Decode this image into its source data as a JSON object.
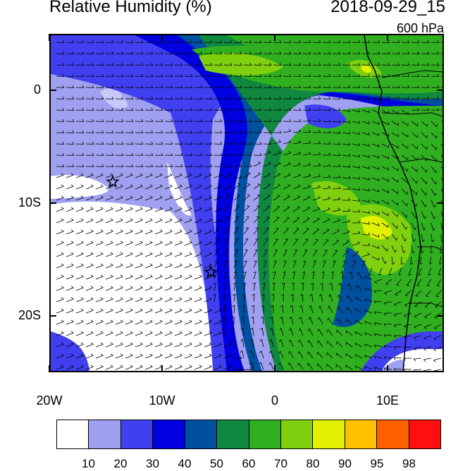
{
  "header": {
    "title": "Relative Humidity (%)",
    "datetime": "2018-09-29_15",
    "level": "600 hPa"
  },
  "map": {
    "lat_labels": [
      {
        "text": "0",
        "lat": 0
      },
      {
        "text": "10S",
        "lat": -10
      },
      {
        "text": "20S",
        "lat": -20
      }
    ],
    "lon_labels": [
      {
        "text": "20W",
        "lon": -20
      },
      {
        "text": "10W",
        "lon": -10
      },
      {
        "text": "0",
        "lon": 0
      },
      {
        "text": "10E",
        "lon": 10
      }
    ],
    "lon_range": [
      -20,
      15
    ],
    "lat_range": [
      -25,
      5
    ],
    "markers": [
      {
        "name": "star-marker",
        "lon": -14.5,
        "lat": -8
      },
      {
        "name": "star-marker",
        "lon": -5.8,
        "lat": -16
      }
    ]
  },
  "colorbar": {
    "colors": [
      "#ffffff",
      "#a0a0f0",
      "#4040f0",
      "#0000e0",
      "#0050a0",
      "#108840",
      "#30b020",
      "#80d010",
      "#e0f000",
      "#ffc000",
      "#ff6000",
      "#ff1010"
    ],
    "labels": [
      "10",
      "20",
      "30",
      "40",
      "50",
      "60",
      "70",
      "80",
      "90",
      "95",
      "98"
    ]
  }
}
